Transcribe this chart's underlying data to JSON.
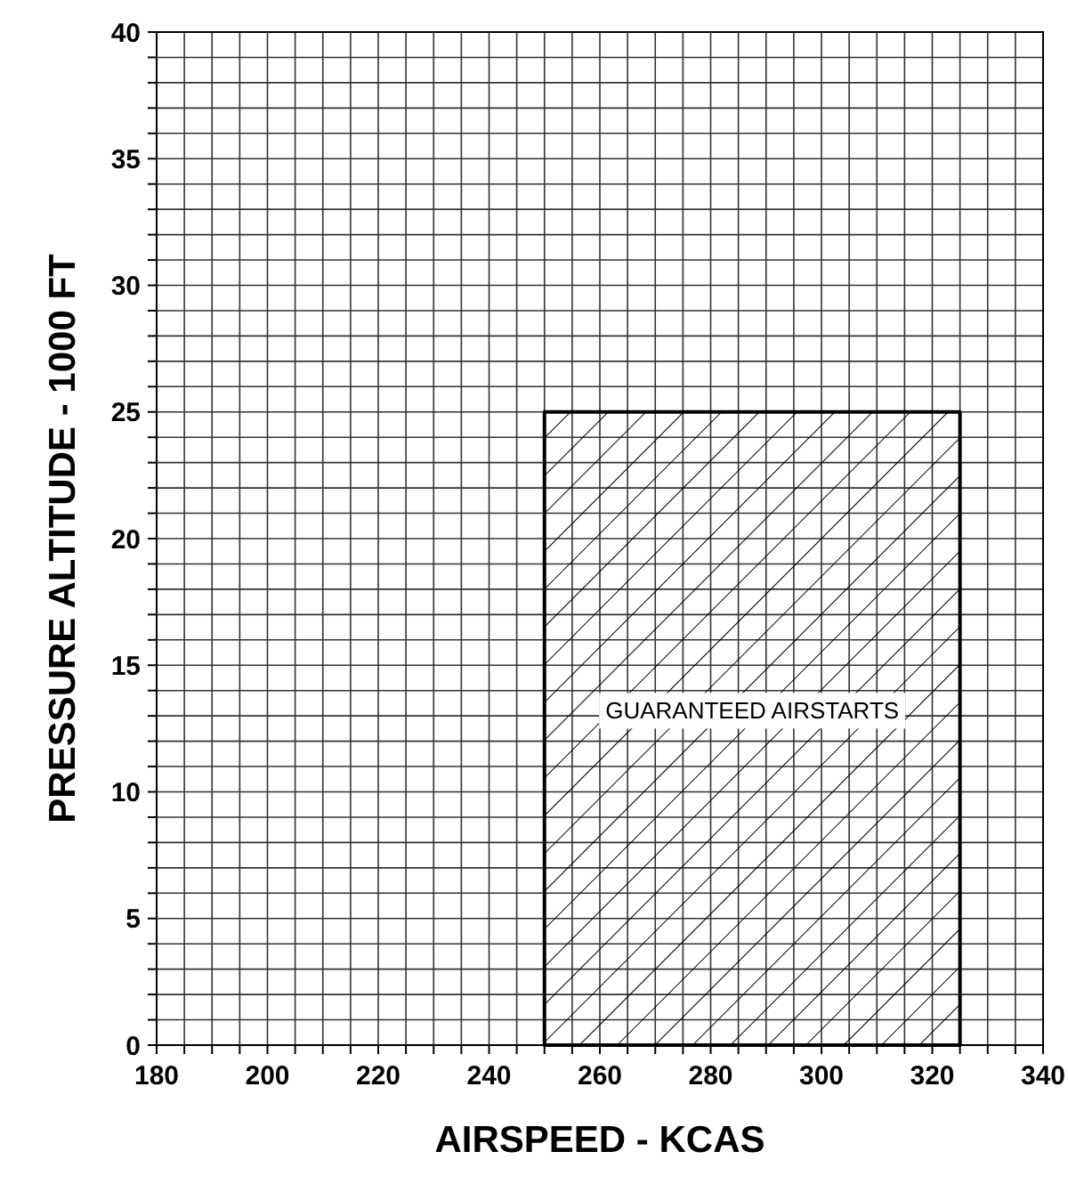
{
  "chart_data": {
    "type": "area",
    "xlabel": "AIRSPEED - KCAS",
    "ylabel": "PRESSURE ALTITUDE - 1000 FT",
    "xlim": [
      180,
      340
    ],
    "ylim": [
      0,
      40
    ],
    "xticks": [
      180,
      {
        "value": 185,
        "label": null
      },
      {
        "value": 190,
        "label": null
      },
      {
        "value": 195,
        "label": null
      },
      200,
      {
        "value": 205,
        "label": null
      },
      {
        "value": 210,
        "label": null
      },
      {
        "value": 215,
        "label": null
      },
      220,
      {
        "value": 225,
        "label": null
      },
      {
        "value": 230,
        "label": null
      },
      {
        "value": 235,
        "label": null
      },
      240,
      {
        "value": 245,
        "label": null
      },
      {
        "value": 250,
        "label": null
      },
      {
        "value": 255,
        "label": null
      },
      260,
      {
        "value": 265,
        "label": null
      },
      {
        "value": 270,
        "label": null
      },
      {
        "value": 275,
        "label": null
      },
      280,
      {
        "value": 285,
        "label": null
      },
      {
        "value": 290,
        "label": null
      },
      {
        "value": 295,
        "label": null
      },
      300,
      {
        "value": 305,
        "label": null
      },
      {
        "value": 310,
        "label": null
      },
      {
        "value": 315,
        "label": null
      },
      320,
      {
        "value": 325,
        "label": null
      },
      {
        "value": 330,
        "label": null
      },
      {
        "value": 335,
        "label": null
      },
      340
    ],
    "yticks": [
      0,
      {
        "value": 1,
        "label": null
      },
      {
        "value": 2,
        "label": null
      },
      {
        "value": 3,
        "label": null
      },
      {
        "value": 4,
        "label": null
      },
      5,
      {
        "value": 6,
        "label": null
      },
      {
        "value": 7,
        "label": null
      },
      {
        "value": 8,
        "label": null
      },
      {
        "value": 9,
        "label": null
      },
      10,
      {
        "value": 11,
        "label": null
      },
      {
        "value": 12,
        "label": null
      },
      {
        "value": 13,
        "label": null
      },
      {
        "value": 14,
        "label": null
      },
      15,
      {
        "value": 16,
        "label": null
      },
      {
        "value": 17,
        "label": null
      },
      {
        "value": 18,
        "label": null
      },
      {
        "value": 19,
        "label": null
      },
      20,
      {
        "value": 21,
        "label": null
      },
      {
        "value": 22,
        "label": null
      },
      {
        "value": 23,
        "label": null
      },
      {
        "value": 24,
        "label": null
      },
      25,
      {
        "value": 26,
        "label": null
      },
      {
        "value": 27,
        "label": null
      },
      {
        "value": 28,
        "label": null
      },
      {
        "value": 29,
        "label": null
      },
      30,
      {
        "value": 31,
        "label": null
      },
      {
        "value": 32,
        "label": null
      },
      {
        "value": 33,
        "label": null
      },
      {
        "value": 34,
        "label": null
      },
      35,
      {
        "value": 36,
        "label": null
      },
      {
        "value": 37,
        "label": null
      },
      {
        "value": 38,
        "label": null
      },
      {
        "value": 39,
        "label": null
      },
      40
    ],
    "grid": true,
    "series": [
      {
        "color": "#000000",
        "x": [
          250,
          325
        ],
        "values": [
          25,
          25
        ]
      }
    ],
    "annotations": [
      "GUARANTEED AIRSTARTS"
    ]
  }
}
